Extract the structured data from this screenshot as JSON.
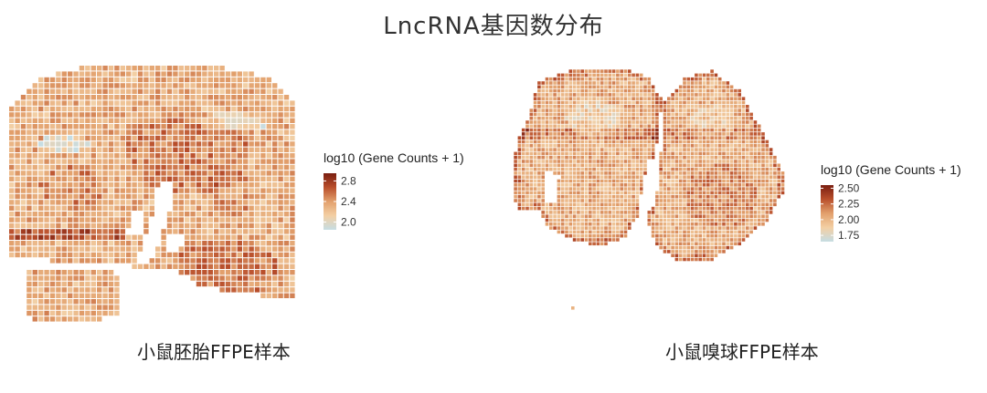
{
  "title": "LncRNA基因数分布",
  "chart_data": [
    {
      "type": "heatmap",
      "caption": "小鼠胚胎FFPE样本",
      "legend": {
        "title": "log10 (Gene Counts + 1)",
        "ticks": [
          2.0,
          2.4,
          2.8
        ],
        "tick_labels": [
          "2.0",
          "2.4",
          "2.8"
        ],
        "range": [
          1.85,
          2.95
        ],
        "colors": [
          "#c6dde3",
          "#f3cfa4",
          "#e2a06c",
          "#b94f2c",
          "#7a1e10"
        ]
      },
      "value_summary": {
        "typical": 2.4,
        "min": 1.9,
        "max": 2.95
      }
    },
    {
      "type": "heatmap",
      "caption": "小鼠嗅球FFPE样本",
      "legend": {
        "title": "log10 (Gene Counts + 1)",
        "ticks": [
          1.75,
          2.0,
          2.25,
          2.5
        ],
        "tick_labels": [
          "1.75",
          "2.00",
          "2.25",
          "2.50"
        ],
        "range": [
          1.65,
          2.55
        ],
        "colors": [
          "#c6dde3",
          "#f3cfa4",
          "#e2a06c",
          "#b94f2c",
          "#7a1e10"
        ]
      },
      "value_summary": {
        "typical": 2.1,
        "min": 1.7,
        "max": 2.5
      }
    }
  ]
}
